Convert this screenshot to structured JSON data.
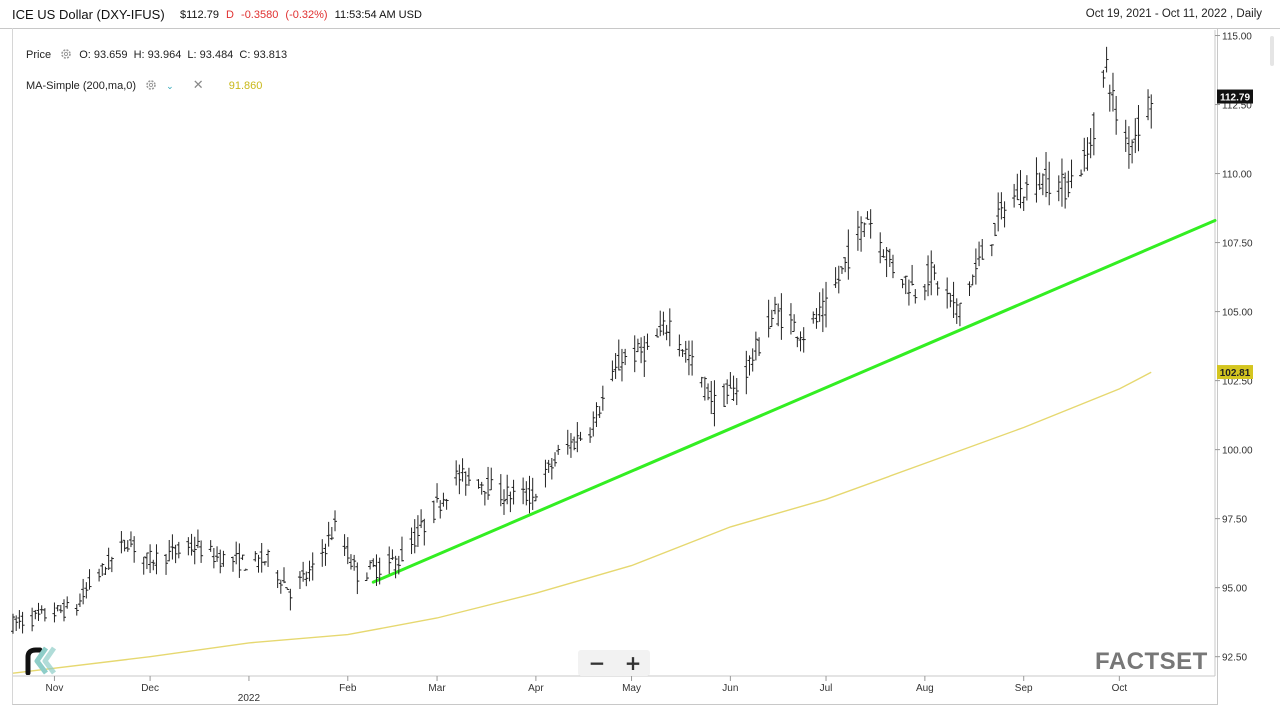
{
  "header": {
    "title": "ICE US Dollar (DXY-IFUS)",
    "last": "$112.79",
    "flag": "D",
    "change": "-0.3580",
    "change_pct": "(-0.32%)",
    "time": "11:53:54 AM USD",
    "range": "Oct 19, 2021 - Oct 11, 2022 , Daily"
  },
  "legend": {
    "price_label": "Price",
    "ohlc": "O: 93.659  H: 93.964  L: 93.484  C: 93.813",
    "ma_label": "MA-Simple (200,ma,0)",
    "ma_value": "91.860"
  },
  "brand": {
    "left_logo": "rk",
    "right_logo": "FACTSET"
  },
  "colors": {
    "price": "#222222",
    "trendline": "#33ee22",
    "ma": "#e6d870",
    "ma_tag": "#d4c520",
    "last_tag": "#111111",
    "change": "#e03030"
  },
  "chart_data": {
    "type": "ohlc",
    "y_ticks": [
      92.5,
      95.0,
      97.5,
      100.0,
      102.5,
      105.0,
      107.5,
      110.0,
      112.5,
      115.0
    ],
    "y_tick_labels": [
      "92.50",
      "95.00",
      "97.50",
      "100.00",
      "102.50",
      "105.00",
      "107.50",
      "110.00",
      "112.50",
      "115.00"
    ],
    "ylim": [
      91.8,
      115.2
    ],
    "x_range": [
      "2021-10-19",
      "2022-10-31"
    ],
    "x_ticks": [
      {
        "date": "2021-11-01",
        "label": "Nov"
      },
      {
        "date": "2021-12-01",
        "label": "Dec"
      },
      {
        "date": "2022-01-01",
        "label": "2022"
      },
      {
        "date": "2022-02-01",
        "label": "Feb"
      },
      {
        "date": "2022-03-01",
        "label": "Mar"
      },
      {
        "date": "2022-04-01",
        "label": "Apr"
      },
      {
        "date": "2022-05-01",
        "label": "May"
      },
      {
        "date": "2022-06-01",
        "label": "Jun"
      },
      {
        "date": "2022-07-01",
        "label": "Jul"
      },
      {
        "date": "2022-08-01",
        "label": "Aug"
      },
      {
        "date": "2022-09-01",
        "label": "Sep"
      },
      {
        "date": "2022-10-01",
        "label": "Oct"
      }
    ],
    "price_anchors": [
      [
        "2021-10-19",
        93.7
      ],
      [
        "2021-10-26",
        93.9
      ],
      [
        "2021-11-01",
        94.1
      ],
      [
        "2021-11-08",
        94.3
      ],
      [
        "2021-11-12",
        95.1
      ],
      [
        "2021-11-19",
        96.0
      ],
      [
        "2021-11-24",
        96.7
      ],
      [
        "2021-11-30",
        96.0
      ],
      [
        "2021-12-07",
        96.2
      ],
      [
        "2021-12-15",
        96.5
      ],
      [
        "2021-12-22",
        96.1
      ],
      [
        "2021-12-31",
        95.9
      ],
      [
        "2022-01-07",
        96.0
      ],
      [
        "2022-01-14",
        94.9
      ],
      [
        "2022-01-21",
        95.6
      ],
      [
        "2022-01-28",
        97.2
      ],
      [
        "2022-02-04",
        95.5
      ],
      [
        "2022-02-10",
        95.7
      ],
      [
        "2022-02-17",
        96.0
      ],
      [
        "2022-02-24",
        97.1
      ],
      [
        "2022-03-07",
        99.0
      ],
      [
        "2022-03-14",
        98.9
      ],
      [
        "2022-03-21",
        98.4
      ],
      [
        "2022-03-31",
        98.3
      ],
      [
        "2022-04-08",
        99.8
      ],
      [
        "2022-04-18",
        100.8
      ],
      [
        "2022-04-28",
        103.3
      ],
      [
        "2022-05-06",
        103.6
      ],
      [
        "2022-05-13",
        104.6
      ],
      [
        "2022-05-20",
        103.1
      ],
      [
        "2022-05-27",
        101.7
      ],
      [
        "2022-06-03",
        102.2
      ],
      [
        "2022-06-15",
        105.0
      ],
      [
        "2022-06-24",
        104.2
      ],
      [
        "2022-07-01",
        105.1
      ],
      [
        "2022-07-08",
        107.0
      ],
      [
        "2022-07-14",
        108.5
      ],
      [
        "2022-07-22",
        106.6
      ],
      [
        "2022-07-29",
        105.8
      ],
      [
        "2022-08-03",
        106.4
      ],
      [
        "2022-08-11",
        105.0
      ],
      [
        "2022-08-17",
        106.5
      ],
      [
        "2022-08-26",
        108.8
      ],
      [
        "2022-09-02",
        109.5
      ],
      [
        "2022-09-07",
        109.8
      ],
      [
        "2022-09-14",
        109.5
      ],
      [
        "2022-09-21",
        110.6
      ],
      [
        "2022-09-27",
        113.9
      ],
      [
        "2022-09-30",
        112.1
      ],
      [
        "2022-10-04",
        111.0
      ],
      [
        "2022-10-11",
        112.8
      ]
    ],
    "ma200_anchors": [
      [
        "2021-10-19",
        91.9
      ],
      [
        "2021-12-01",
        92.5
      ],
      [
        "2022-01-01",
        93.0
      ],
      [
        "2022-02-01",
        93.3
      ],
      [
        "2022-03-01",
        93.9
      ],
      [
        "2022-04-01",
        94.8
      ],
      [
        "2022-05-01",
        95.8
      ],
      [
        "2022-06-01",
        97.2
      ],
      [
        "2022-07-01",
        98.2
      ],
      [
        "2022-08-01",
        99.5
      ],
      [
        "2022-09-01",
        100.8
      ],
      [
        "2022-10-01",
        102.2
      ],
      [
        "2022-10-11",
        102.8
      ]
    ],
    "trendline": {
      "start": [
        "2022-02-09",
        95.2
      ],
      "end": [
        "2022-10-31",
        108.3
      ]
    },
    "last_price_tag": {
      "value": 112.79,
      "label": "112.79"
    },
    "ma_tag": {
      "value": 102.81,
      "label": "102.81"
    }
  }
}
